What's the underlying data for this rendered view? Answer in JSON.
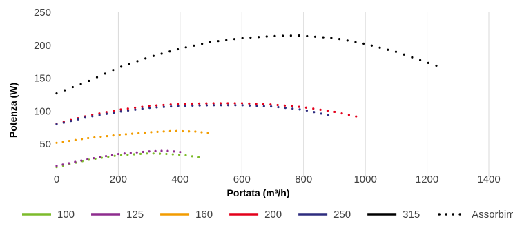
{
  "chart_data": {
    "type": "scatter",
    "xlabel": "Portata (m³/h)",
    "ylabel": "Potenza (W)",
    "xlim": [
      0,
      1400
    ],
    "ylim": [
      0,
      250
    ],
    "x_ticks": [
      0,
      200,
      400,
      600,
      800,
      1000,
      1200,
      1400
    ],
    "y_ticks": [
      0,
      50,
      100,
      150,
      200,
      250
    ],
    "grid": "vertical",
    "legend_position": "bottom",
    "legend": [
      {
        "label": "100",
        "color": "#7dbb2b",
        "style": "line"
      },
      {
        "label": "125",
        "color": "#8e2d8e",
        "style": "line"
      },
      {
        "label": "160",
        "color": "#f29c00",
        "style": "line"
      },
      {
        "label": "200",
        "color": "#e3001b",
        "style": "line"
      },
      {
        "label": "250",
        "color": "#2e2d7f",
        "style": "line"
      },
      {
        "label": "315",
        "color": "#000000",
        "style": "line"
      },
      {
        "label": "Assorbim.",
        "color": "#000000",
        "style": "dots"
      }
    ],
    "series": [
      {
        "color": "#000000",
        "x_range": [
          0,
          1230
        ],
        "count": 48,
        "points": [
          [
            0,
            127
          ],
          [
            100,
            145
          ],
          [
            200,
            166
          ],
          [
            300,
            182
          ],
          [
            400,
            195
          ],
          [
            500,
            205
          ],
          [
            600,
            211
          ],
          [
            700,
            214
          ],
          [
            780,
            215
          ],
          [
            900,
            211
          ],
          [
            1000,
            202
          ],
          [
            1100,
            190
          ],
          [
            1230,
            169
          ]
        ]
      },
      {
        "color": "#e3001b",
        "x_range": [
          0,
          970
        ],
        "count": 43,
        "points": [
          [
            0,
            81
          ],
          [
            100,
            93
          ],
          [
            200,
            102
          ],
          [
            300,
            108
          ],
          [
            400,
            111
          ],
          [
            500,
            112
          ],
          [
            600,
            112
          ],
          [
            700,
            110
          ],
          [
            800,
            106
          ],
          [
            900,
            99
          ],
          [
            970,
            92
          ]
        ]
      },
      {
        "color": "#2e2d7f",
        "x_range": [
          0,
          880
        ],
        "count": 39,
        "points": [
          [
            0,
            80
          ],
          [
            100,
            91
          ],
          [
            200,
            99
          ],
          [
            300,
            105
          ],
          [
            400,
            108
          ],
          [
            500,
            109
          ],
          [
            600,
            109
          ],
          [
            700,
            107
          ],
          [
            800,
            102
          ],
          [
            880,
            94
          ]
        ]
      },
      {
        "color": "#f29c00",
        "x_range": [
          0,
          490
        ],
        "count": 25,
        "points": [
          [
            0,
            52
          ],
          [
            100,
            59
          ],
          [
            200,
            64
          ],
          [
            300,
            68
          ],
          [
            380,
            70
          ],
          [
            450,
            69
          ],
          [
            490,
            67
          ]
        ]
      },
      {
        "color": "#7dbb2b",
        "x_range": [
          0,
          460
        ],
        "count": 23,
        "points": [
          [
            0,
            15
          ],
          [
            100,
            26
          ],
          [
            200,
            33
          ],
          [
            300,
            36
          ],
          [
            360,
            35
          ],
          [
            420,
            33
          ],
          [
            460,
            30
          ]
        ]
      },
      {
        "color": "#8e2d8e",
        "x_range": [
          0,
          400
        ],
        "count": 21,
        "points": [
          [
            0,
            17
          ],
          [
            100,
            27
          ],
          [
            200,
            35
          ],
          [
            300,
            39
          ],
          [
            350,
            40
          ],
          [
            400,
            38
          ]
        ]
      }
    ]
  }
}
